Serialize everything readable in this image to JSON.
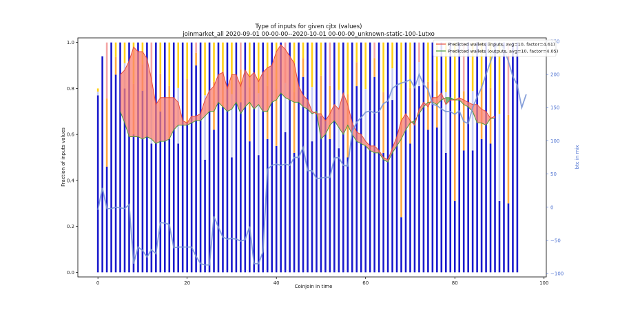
{
  "chart_data": {
    "type": "bar",
    "title": "Type of inputs for given cjtx (values)",
    "subtitle": "joinmarket_all 2020-09-01 00-00-00--2020-10-01 00-00-00_unknown-static-100-1utxo",
    "xlabel": "Coinjoin in time",
    "ylabel": "Fraction of inputs values",
    "ylabel_right": "btc in mix",
    "xlim": [
      -4.5,
      100.5
    ],
    "ylim": [
      -0.02,
      1.02
    ],
    "ylim_right": [
      -105,
      255
    ],
    "x_ticks": [
      "0",
      "20",
      "40",
      "60",
      "80",
      "100"
    ],
    "y_ticks": [
      "0.0",
      "0.2",
      "0.4",
      "0.6",
      "0.8",
      "1.0"
    ],
    "y_right_ticks": [
      "−100",
      "−50",
      "0",
      "50",
      "100",
      "150",
      "200",
      "250"
    ],
    "legend": {
      "position": "top-right",
      "entries": [
        {
          "label": "Predicted wallets (inputs, avg=10, factor=4.61)",
          "color": "#e74c3c"
        },
        {
          "label": "Predicted wallets (outputs, avg=10, factor=4.05)",
          "color": "#2e8b2e"
        }
      ]
    },
    "colors": {
      "fresh_bar": "#1a1acc",
      "remix_bar": "#ffd11a",
      "orange_bar": "#ffa640",
      "light_bar": "#c8cdf4",
      "pink_bar": "#f4a6a6",
      "btc_line": "#7b97d6",
      "inputs_line": "#e74c3c",
      "outputs_line": "#4a9a3a",
      "fill_red": "#fa8072",
      "fill_green": "#3c9a3c",
      "right_axis": "#4a6fd0"
    },
    "bar_data_note": "",
    "bar_fresh_values": [
      0.77,
      0.94,
      0.46,
      1.0,
      0.86,
      1.0,
      0.8,
      1.0,
      0.6,
      1.0,
      0.79,
      1.0,
      0.56,
      1.0,
      0.7,
      1.0,
      0.58,
      1.0,
      0.56,
      1.0,
      0.65,
      1.0,
      0.9,
      1.0,
      0.49,
      1.0,
      0.62,
      1.0,
      0.72,
      1.0,
      0.5,
      1.0,
      0.74,
      1.0,
      0.57,
      1.0,
      0.51,
      1.0,
      0.58,
      1.0,
      0.55,
      1.0,
      0.61,
      1.0,
      0.52,
      1.0,
      0.85,
      1.0,
      0.57,
      1.0,
      0.68,
      1.0,
      0.58,
      1.0,
      0.54,
      1.0,
      0.5,
      1.0,
      0.81,
      1.0,
      0.55,
      1.0,
      0.85,
      1.0,
      0.52,
      1.0,
      0.75,
      1.0,
      0.24,
      1.0,
      0.56,
      1.0,
      0.81,
      1.0,
      0.62,
      1.0,
      0.63,
      1.0,
      0.52,
      1.0,
      0.31,
      1.0,
      0.53,
      1.0,
      0.53,
      1.0,
      0.58,
      1.0,
      0.56,
      1.0,
      0.31,
      1.0,
      0.3,
      1.0,
      1.0
    ],
    "bar_remix_values": [
      0.03,
      0.0,
      0.54,
      0.0,
      0.14,
      0.0,
      0.2,
      0.0,
      0.4,
      0.0,
      0.21,
      0.0,
      0.44,
      0.0,
      0.3,
      0.0,
      0.42,
      0.0,
      0.44,
      0.0,
      0.35,
      0.0,
      0.1,
      0.0,
      0.51,
      0.0,
      0.38,
      0.0,
      0.28,
      0.0,
      0.5,
      0.0,
      0.26,
      0.0,
      0.43,
      0.0,
      0.49,
      0.0,
      0.42,
      0.0,
      0.45,
      0.0,
      0.39,
      0.0,
      0.48,
      0.0,
      0.15,
      0.0,
      0.43,
      0.0,
      0.32,
      0.0,
      0.42,
      0.0,
      0.46,
      0.0,
      0.5,
      0.0,
      0.19,
      0.0,
      0.45,
      0.0,
      0.15,
      0.0,
      0.48,
      0.0,
      0.25,
      0.0,
      0.76,
      0.0,
      0.44,
      0.0,
      0.19,
      0.0,
      0.38,
      0.0,
      0.37,
      0.0,
      0.48,
      0.0,
      0.69,
      0.0,
      0.47,
      0.0,
      0.47,
      0.0,
      0.42,
      0.0,
      0.44,
      0.0,
      0.69,
      0.0,
      0.7,
      0.0,
      0.0
    ],
    "btc_in_mix": [
      -4,
      29,
      -2,
      -2,
      0,
      -1,
      -2,
      4,
      -85,
      -60,
      -65,
      -75,
      -64,
      -70,
      -23,
      -24,
      -26,
      -61,
      -60,
      -60,
      -60,
      -60,
      -74,
      -85,
      -87,
      -87,
      -14,
      -30,
      -45,
      -48,
      -47,
      -48,
      -51,
      -49,
      -29,
      -85,
      -85,
      -67,
      57,
      63,
      65,
      63,
      65,
      63,
      75,
      75,
      90,
      55,
      55,
      43,
      44,
      45,
      45,
      74,
      75,
      63,
      62,
      114,
      128,
      135,
      143,
      145,
      142,
      144,
      156,
      160,
      179,
      184,
      187,
      189,
      192,
      180,
      200,
      185,
      177,
      155,
      153,
      148,
      144,
      144,
      140,
      145,
      129,
      126,
      150,
      166,
      180,
      200,
      219,
      239,
      248,
      238,
      220,
      197,
      184,
      150,
      170
    ],
    "inputs_line": [
      null,
      null,
      null,
      null,
      null,
      0.86,
      0.88,
      0.92,
      0.98,
      0.96,
      0.96,
      0.93,
      0.84,
      0.73,
      0.76,
      0.76,
      0.76,
      0.76,
      0.74,
      0.66,
      0.65,
      0.68,
      0.68,
      0.69,
      0.75,
      0.79,
      0.81,
      0.86,
      0.87,
      0.8,
      0.86,
      0.86,
      0.81,
      0.88,
      0.85,
      0.87,
      0.83,
      0.87,
      0.89,
      0.9,
      0.96,
      0.99,
      0.97,
      0.94,
      0.91,
      0.81,
      0.77,
      0.75,
      0.7,
      0.69,
      0.69,
      0.66,
      0.69,
      0.73,
      0.71,
      0.78,
      0.73,
      0.65,
      0.61,
      0.6,
      0.57,
      0.55,
      0.55,
      0.53,
      0.5,
      0.49,
      0.54,
      0.59,
      0.66,
      0.69,
      0.66,
      0.64,
      0.71,
      0.74,
      0.72,
      0.76,
      0.76,
      0.78,
      0.73,
      0.75,
      0.75,
      0.76,
      0.75,
      0.74,
      0.73,
      0.73,
      0.71,
      0.7,
      0.67,
      0.68,
      null,
      null,
      null,
      null,
      null,
      null,
      null
    ],
    "outputs_line": [
      null,
      null,
      null,
      null,
      null,
      0.7,
      0.65,
      0.59,
      0.59,
      0.59,
      0.58,
      0.59,
      0.58,
      0.56,
      0.57,
      0.57,
      0.58,
      0.62,
      0.64,
      0.64,
      0.64,
      0.65,
      0.66,
      0.66,
      0.68,
      0.7,
      0.7,
      0.74,
      0.72,
      0.7,
      0.71,
      0.74,
      0.69,
      0.72,
      0.74,
      0.71,
      0.73,
      0.7,
      0.7,
      0.74,
      0.75,
      0.78,
      0.76,
      0.75,
      0.74,
      0.74,
      0.72,
      0.71,
      0.69,
      0.7,
      0.58,
      0.6,
      0.64,
      0.66,
      0.63,
      0.6,
      0.64,
      0.6,
      0.57,
      0.56,
      0.55,
      0.53,
      0.52,
      0.52,
      0.49,
      0.48,
      0.52,
      0.55,
      0.58,
      0.62,
      0.65,
      0.66,
      0.69,
      0.72,
      0.74,
      0.74,
      0.73,
      0.75,
      0.76,
      0.76,
      0.75,
      0.75,
      0.73,
      0.72,
      0.7,
      0.65,
      0.65,
      0.64,
      0.67,
      0.67,
      null,
      null,
      null,
      null,
      null,
      null,
      null
    ]
  }
}
